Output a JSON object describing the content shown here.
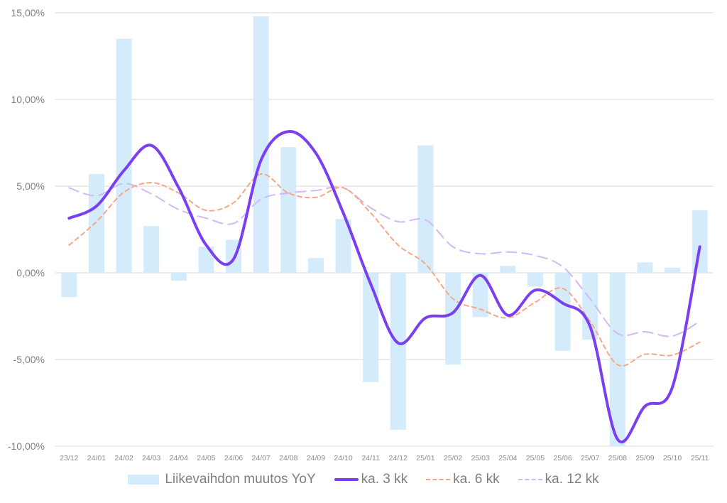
{
  "chart_data": {
    "type": "bar",
    "title": "",
    "xlabel": "",
    "ylabel": "",
    "ylim": [
      -10,
      15
    ],
    "yticks": [
      -10,
      -5,
      0,
      5,
      10,
      15
    ],
    "ytick_labels": [
      "-10,00%",
      "-5,00%",
      "0,00%",
      "5,00%",
      "10,00%",
      "15,00%"
    ],
    "grid": true,
    "legend_position": "bottom",
    "categories": [
      "23/12",
      "24/01",
      "24/02",
      "24/03",
      "24/04",
      "24/05",
      "24/06",
      "24/07",
      "24/08",
      "24/09",
      "24/10",
      "24/11",
      "24/12",
      "25/01",
      "25/02",
      "25/03",
      "25/04",
      "25/05",
      "25/06",
      "25/07",
      "25/08",
      "25/09",
      "25/10",
      "25/11"
    ],
    "series": [
      {
        "name": "Liikevaihdon muutos YoY",
        "kind": "bar",
        "color": "#d4ebfc",
        "values": [
          -1.4,
          5.7,
          13.5,
          2.7,
          -0.45,
          1.5,
          1.9,
          14.8,
          7.25,
          0.85,
          3.1,
          -6.3,
          -9.05,
          7.35,
          -5.3,
          -2.55,
          0.4,
          -0.8,
          -4.5,
          -3.85,
          -10.1,
          0.6,
          0.3,
          3.6
        ]
      },
      {
        "name": "ka. 3 kk",
        "kind": "line",
        "style": "solid",
        "color": "#7b3ff2",
        "values": [
          3.15,
          3.85,
          5.9,
          7.35,
          4.9,
          1.6,
          0.8,
          6.5,
          8.15,
          6.9,
          3.45,
          -0.65,
          -4.05,
          -2.6,
          -2.3,
          -0.15,
          -2.45,
          -1.0,
          -1.75,
          -3.1,
          -9.6,
          -7.7,
          -6.6,
          1.5
        ]
      },
      {
        "name": "ka. 6 kk",
        "kind": "line",
        "style": "dashed",
        "color": "#f7a784",
        "values": [
          1.6,
          2.95,
          4.65,
          5.2,
          4.6,
          3.6,
          4.05,
          5.7,
          4.6,
          4.35,
          4.9,
          3.45,
          1.6,
          0.5,
          -1.5,
          -2.1,
          -2.6,
          -1.7,
          -0.9,
          -2.8,
          -5.3,
          -4.7,
          -4.75,
          -4.0
        ]
      },
      {
        "name": "ka. 12 kk",
        "kind": "line",
        "style": "longdash",
        "color": "#d2b8f7",
        "values": [
          4.9,
          4.45,
          5.15,
          4.55,
          3.65,
          3.15,
          2.85,
          4.25,
          4.6,
          4.75,
          4.9,
          3.75,
          2.95,
          3.05,
          1.5,
          1.1,
          1.2,
          1.0,
          0.35,
          -1.5,
          -3.5,
          -3.4,
          -3.65,
          -2.8
        ]
      }
    ]
  }
}
